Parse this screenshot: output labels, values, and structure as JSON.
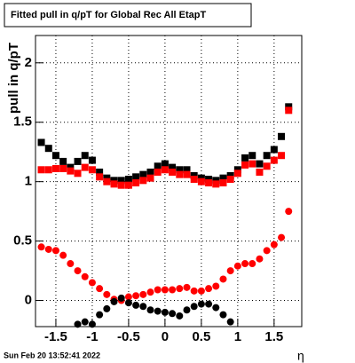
{
  "chart_data": {
    "type": "scatter",
    "title": "Fitted pull in q/pT for Global Rec All EtapT",
    "y_label": "pull in q/pT",
    "x_label": "η",
    "footer": "Sun Feb 20 13:52:41 2022",
    "x": [
      -1.7,
      -1.6,
      -1.5,
      -1.4,
      -1.3,
      -1.2,
      -1.1,
      -1.0,
      -0.9,
      -0.8,
      -0.7,
      -0.6,
      -0.5,
      -0.4,
      -0.3,
      -0.2,
      -0.1,
      0,
      0.1,
      0.2,
      0.3,
      0.4,
      0.5,
      0.6,
      0.7,
      0.8,
      0.9,
      1.0,
      1.1,
      1.2,
      1.3,
      1.4,
      1.5,
      1.6,
      1.7
    ],
    "series": [
      {
        "name": "black squares",
        "color": "#000000",
        "marker": "square",
        "values": [
          1.33,
          1.28,
          1.22,
          1.17,
          1.12,
          1.17,
          1.22,
          1.18,
          1.08,
          1.03,
          1.01,
          1.01,
          1.02,
          1.04,
          1.06,
          1.08,
          1.13,
          1.15,
          1.12,
          1.1,
          1.1,
          1.05,
          1.03,
          1.02,
          1.01,
          1.03,
          1.05,
          1.1,
          1.2,
          1.22,
          1.15,
          1.22,
          1.27,
          1.38,
          1.63
        ]
      },
      {
        "name": "red squares",
        "color": "#ff0000",
        "marker": "square",
        "values": [
          1.1,
          1.1,
          1.11,
          1.11,
          1.09,
          1.07,
          1.12,
          1.1,
          1.04,
          1.0,
          0.98,
          0.97,
          0.97,
          0.99,
          1.01,
          1.03,
          1.08,
          1.1,
          1.08,
          1.06,
          1.06,
          1.02,
          1.0,
          0.99,
          0.98,
          0.99,
          1.02,
          1.07,
          1.14,
          1.15,
          1.08,
          1.13,
          1.18,
          1.22,
          1.6
        ]
      },
      {
        "name": "red circles",
        "color": "#ff0000",
        "marker": "circle",
        "values": [
          0.45,
          0.43,
          0.42,
          0.38,
          0.31,
          0.25,
          0.2,
          0.15,
          0.1,
          0.05,
          0.01,
          0.0,
          0.03,
          0.04,
          0.05,
          0.07,
          0.09,
          0.09,
          0.09,
          0.1,
          0.11,
          0.08,
          0.08,
          0.1,
          0.12,
          0.18,
          0.25,
          0.29,
          0.31,
          0.31,
          0.35,
          0.42,
          0.47,
          0.53,
          0.75
        ]
      },
      {
        "name": "black circles",
        "color": "#000000",
        "marker": "circle",
        "values": [
          null,
          null,
          null,
          null,
          null,
          -0.2,
          -0.18,
          -0.2,
          -0.12,
          -0.07,
          -0.01,
          0.02,
          -0.02,
          -0.04,
          -0.05,
          -0.08,
          -0.09,
          -0.1,
          -0.11,
          -0.13,
          -0.08,
          -0.05,
          -0.03,
          -0.03,
          -0.06,
          -0.12,
          -0.18,
          null,
          null,
          null,
          null,
          null,
          null,
          null,
          null
        ]
      }
    ],
    "xlim": [
      -1.78,
      1.88
    ],
    "ylim": [
      -0.22,
      2.23
    ],
    "xticks": [
      -1.5,
      -1,
      -0.5,
      0,
      0.5,
      1,
      1.5
    ],
    "yticks": [
      0,
      0.5,
      1,
      1.5,
      2
    ],
    "grid": true
  }
}
